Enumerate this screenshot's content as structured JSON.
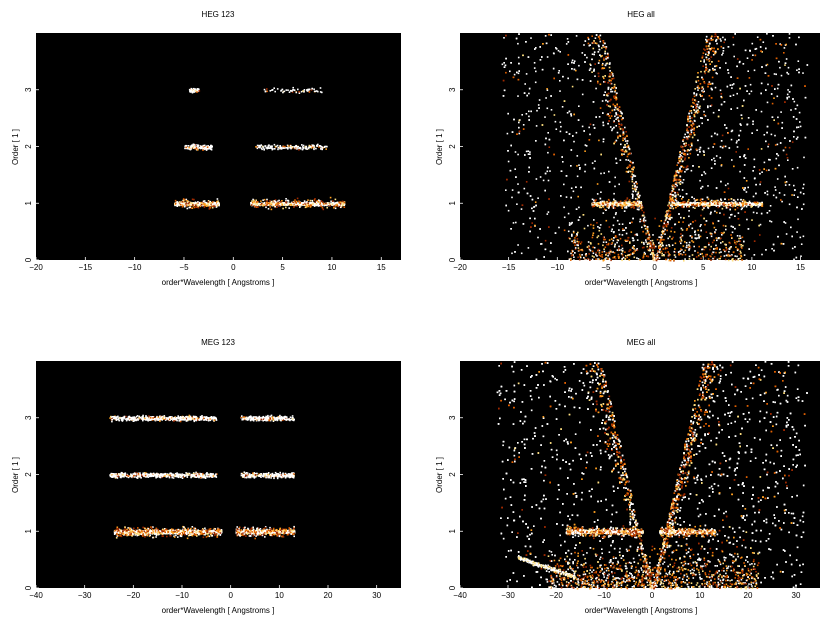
{
  "chart_data": [
    {
      "type": "heatmap",
      "title": "HEG 123",
      "xlabel": "order*Wavelength [ Angstroms ]",
      "ylabel": "Order [ 1 ]",
      "xlim": [
        -20,
        17
      ],
      "ylim": [
        0,
        4
      ],
      "xticks": [
        -20,
        -15,
        -10,
        -5,
        0,
        5,
        10,
        15
      ],
      "yticks": [
        0,
        1,
        2,
        3
      ],
      "background": "#000000",
      "bands": [
        {
          "order": 1,
          "segments": [
            [
              -6,
              -1.5
            ],
            [
              1.7,
              11.2
            ]
          ],
          "density": "high"
        },
        {
          "order": 2,
          "segments": [
            [
              -5,
              -2.2
            ],
            [
              2.2,
              9.5
            ]
          ],
          "density": "low"
        },
        {
          "order": 3,
          "segments": [
            [
              -4.5,
              -3.5
            ],
            [
              3,
              9
            ]
          ],
          "density": "very-low"
        }
      ],
      "fan": false
    },
    {
      "type": "heatmap",
      "title": "HEG all",
      "xlabel": "order*Wavelength [ Angstroms ]",
      "ylabel": "Order [ 1 ]",
      "xlim": [
        -20,
        17
      ],
      "ylim": [
        0,
        4
      ],
      "xticks": [
        -20,
        -15,
        -10,
        -5,
        0,
        5,
        10,
        15
      ],
      "yticks": [
        0,
        1,
        2,
        3
      ],
      "background": "#000000",
      "bands": [
        {
          "order": 1,
          "segments": [
            [
              -6.5,
              -1.5
            ],
            [
              1.7,
              11
            ]
          ],
          "density": "high"
        }
      ],
      "fan": true,
      "fan_slope": 6.0
    },
    {
      "type": "heatmap",
      "title": "MEG 123",
      "xlabel": "order*Wavelength [ Angstroms ]",
      "ylabel": "Order [ 1 ]",
      "xlim": [
        -40,
        35
      ],
      "ylim": [
        0,
        4
      ],
      "xticks": [
        -40,
        -30,
        -20,
        -10,
        0,
        10,
        20,
        30
      ],
      "yticks": [
        0,
        1,
        2,
        3
      ],
      "background": "#000000",
      "bands": [
        {
          "order": 1,
          "segments": [
            [
              -24,
              -2
            ],
            [
              1,
              13
            ]
          ],
          "density": "high"
        },
        {
          "order": 2,
          "segments": [
            [
              -25,
              -3
            ],
            [
              2,
              13
            ]
          ],
          "density": "low"
        },
        {
          "order": 3,
          "segments": [
            [
              -25,
              -3
            ],
            [
              2,
              13
            ]
          ],
          "density": "low"
        }
      ],
      "fan": false
    },
    {
      "type": "heatmap",
      "title": "MEG all",
      "xlabel": "order*Wavelength [ Angstroms ]",
      "ylabel": "Order [ 1 ]",
      "xlim": [
        -40,
        35
      ],
      "ylim": [
        0,
        4
      ],
      "xticks": [
        -40,
        -30,
        -20,
        -10,
        0,
        10,
        20,
        30
      ],
      "yticks": [
        0,
        1,
        2,
        3
      ],
      "background": "#000000",
      "bands": [
        {
          "order": 1,
          "segments": [
            [
              -18,
              -2
            ],
            [
              1.5,
              13
            ]
          ],
          "density": "high"
        }
      ],
      "fan": true,
      "fan_slope": 12.0
    }
  ],
  "colors": {
    "background": "#000000",
    "palette": [
      "#5a0a00",
      "#a02a00",
      "#e06000",
      "#ffa020",
      "#ffe080",
      "#ffffff"
    ]
  }
}
